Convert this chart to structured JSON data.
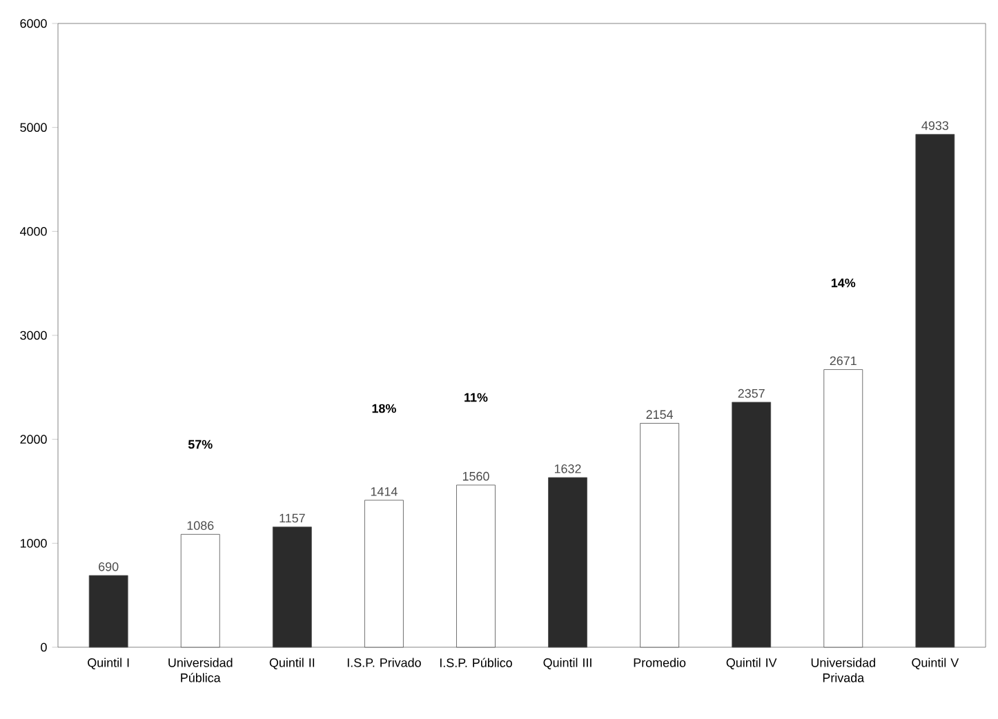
{
  "chart_data": {
    "type": "bar",
    "categories": [
      "Quintil I",
      "Universidad Pública",
      "Quintil II",
      "I.S.P. Privado",
      "I.S.P. Público",
      "Quintil III",
      "Promedio",
      "Quintil IV",
      "Universidad Privada",
      "Quintil V"
    ],
    "values": [
      690,
      1086,
      1157,
      1414,
      1560,
      1632,
      2154,
      2357,
      2671,
      4933
    ],
    "colors": [
      "#2b2b2b",
      "#ffffff",
      "#2b2b2b",
      "#ffffff",
      "#ffffff",
      "#2b2b2b",
      "#ffffff",
      "#2b2b2b",
      "#ffffff",
      "#2b2b2b"
    ],
    "ylim": [
      0,
      6000
    ],
    "yticks": [
      0,
      1000,
      2000,
      3000,
      4000,
      5000,
      6000
    ],
    "data_labels": true,
    "grid": false,
    "annotations": [
      "57%",
      "18%",
      "11%",
      "14%"
    ]
  }
}
